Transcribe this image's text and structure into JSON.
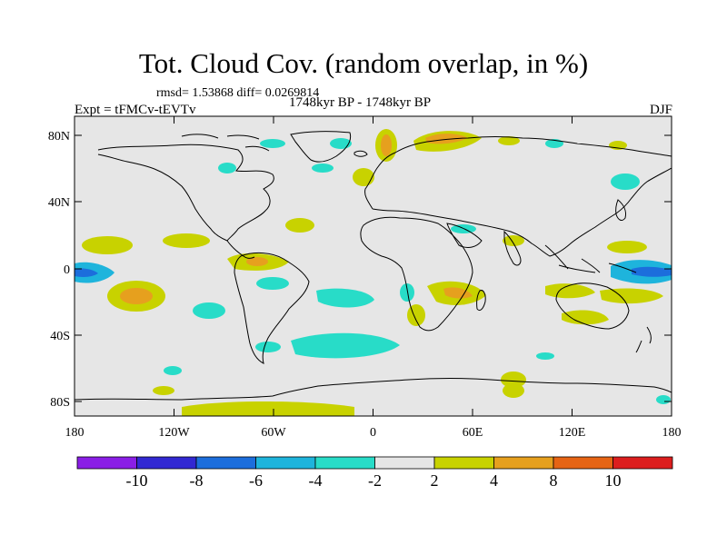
{
  "header": {
    "title": "Tot. Cloud Cov. (random overlap, in %)",
    "stats": "rmsd= 1.53868 diff= 0.0269814",
    "expt": "Expt = tFMCv-tEVTv",
    "period": "1748kyr BP - 1748kyr BP",
    "season": "DJF"
  },
  "axes": {
    "lat_ticks": [
      "80N",
      "40N",
      "0",
      "40S",
      "80S"
    ],
    "lon_ticks": [
      "180",
      "120W",
      "60W",
      "0",
      "60E",
      "120E",
      "180"
    ]
  },
  "colorbar": {
    "labels": [
      "-10",
      "-8",
      "-6",
      "-4",
      "-2",
      "2",
      "4",
      "8",
      "10"
    ],
    "colors": [
      "#8a1ee6",
      "#3228d2",
      "#1c6edc",
      "#1eb4dc",
      "#28dcc8",
      "#e6e6e6",
      "#c8d200",
      "#e6a01e",
      "#e66414",
      "#dc1e1e"
    ]
  },
  "map": {
    "ocean_land_fill": "#e6e6e6",
    "coast_color": "#000000"
  }
}
